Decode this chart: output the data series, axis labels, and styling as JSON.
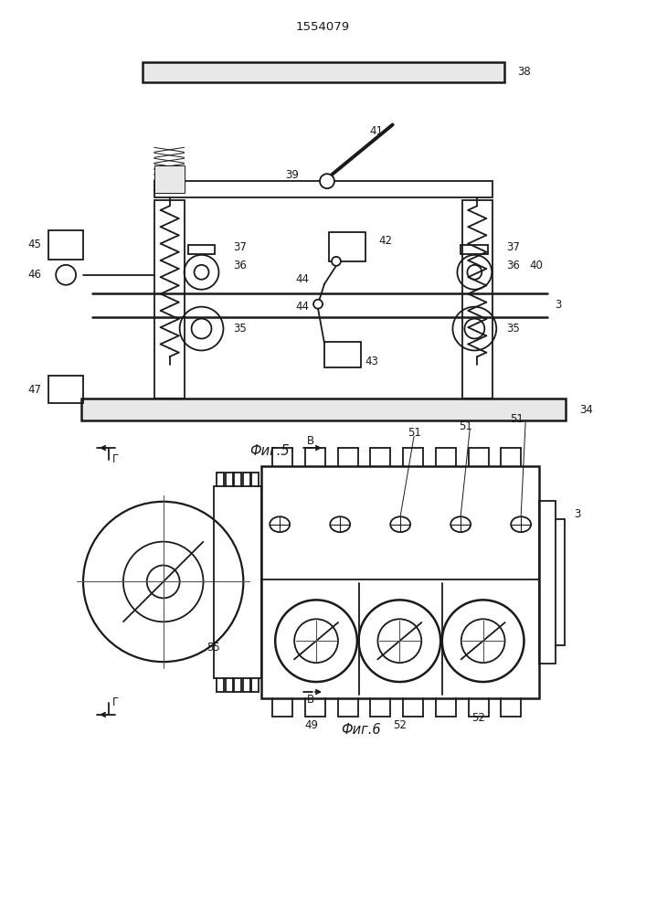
{
  "title": "1554079",
  "fig5_caption": "Фиг.5",
  "fig6_caption": "Фиг.6",
  "bg_color": "#ffffff",
  "line_color": "#1a1a1a",
  "line_width": 1.3,
  "fig_width": 7.07,
  "fig_height": 10.0
}
